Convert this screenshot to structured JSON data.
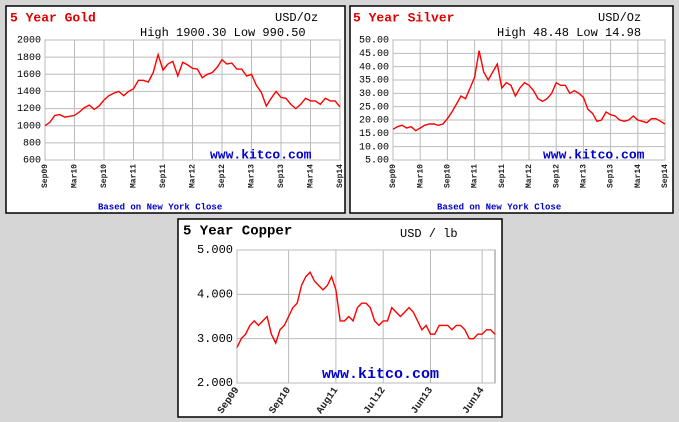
{
  "chart_data": [
    {
      "type": "line",
      "title": "5 Year Gold",
      "unit": "USD/Oz",
      "subtitle": "High 1900.30 Low 990.50",
      "watermark": "www.kitco.com",
      "footnote": "Based on New York Close",
      "categories": [
        "Sep09",
        null,
        null,
        null,
        null,
        null,
        "Mar10",
        null,
        null,
        null,
        null,
        null,
        "Sep10",
        null,
        null,
        null,
        null,
        null,
        "Mar11",
        null,
        null,
        null,
        null,
        null,
        "Sep11",
        null,
        null,
        null,
        null,
        null,
        "Mar12",
        null,
        null,
        null,
        null,
        null,
        "Sep12",
        null,
        null,
        null,
        null,
        null,
        "Mar13",
        null,
        null,
        null,
        null,
        null,
        "Sep13",
        null,
        null,
        null,
        null,
        null,
        "Mar14",
        null,
        null,
        null,
        null,
        null,
        "Sep14"
      ],
      "values": [
        1000,
        1040,
        1120,
        1130,
        1100,
        1110,
        1120,
        1160,
        1210,
        1240,
        1190,
        1230,
        1300,
        1350,
        1380,
        1400,
        1350,
        1400,
        1430,
        1530,
        1530,
        1510,
        1620,
        1830,
        1650,
        1720,
        1750,
        1580,
        1740,
        1710,
        1670,
        1660,
        1560,
        1600,
        1620,
        1680,
        1770,
        1720,
        1730,
        1660,
        1660,
        1580,
        1600,
        1470,
        1390,
        1230,
        1320,
        1400,
        1330,
        1320,
        1250,
        1200,
        1250,
        1320,
        1290,
        1290,
        1250,
        1320,
        1290,
        1290,
        1220
      ],
      "color": "#ff0000",
      "ylim": [
        600,
        2000
      ],
      "yticks": [
        600,
        800,
        1000,
        1200,
        1400,
        1600,
        1800,
        2000
      ],
      "grid": true
    },
    {
      "type": "line",
      "title": "5 Year Silver",
      "unit": "USD/Oz",
      "subtitle": "High 48.48 Low 14.98",
      "watermark": "www.kitco.com",
      "footnote": "Based on New York Close",
      "categories": [
        "Sep09",
        null,
        null,
        null,
        null,
        null,
        "Mar10",
        null,
        null,
        null,
        null,
        null,
        "Sep10",
        null,
        null,
        null,
        null,
        null,
        "Mar11",
        null,
        null,
        null,
        null,
        null,
        "Sep11",
        null,
        null,
        null,
        null,
        null,
        "Mar12",
        null,
        null,
        null,
        null,
        null,
        "Sep12",
        null,
        null,
        null,
        null,
        null,
        "Mar13",
        null,
        null,
        null,
        null,
        null,
        "Sep13",
        null,
        null,
        null,
        null,
        null,
        "Mar14",
        null,
        null,
        null,
        null,
        null,
        "Sep14"
      ],
      "values": [
        16.5,
        17.5,
        18,
        17,
        17.5,
        16,
        17,
        18,
        18.5,
        18.5,
        18,
        18.5,
        20.5,
        23,
        26,
        29,
        28,
        32,
        36,
        46,
        38,
        35,
        38,
        41,
        32,
        34,
        33,
        29,
        32,
        34,
        33,
        31,
        28,
        27,
        28,
        30,
        34,
        33,
        33,
        30,
        31,
        30,
        28.5,
        24,
        22.5,
        19.5,
        20,
        23,
        22,
        21.5,
        20,
        19.5,
        20,
        21.5,
        20,
        19.5,
        19,
        20.5,
        20.5,
        19.5,
        18.5
      ],
      "color": "#ff0000",
      "ylim": [
        5,
        50
      ],
      "yticks": [
        {
          "value": 5,
          "label": "5.00"
        },
        {
          "value": 10,
          "label": "10.00"
        },
        {
          "value": 15,
          "label": "15.00"
        },
        {
          "value": 20,
          "label": "20.00"
        },
        {
          "value": 25,
          "label": "25.00"
        },
        {
          "value": 30,
          "label": "30.00"
        },
        {
          "value": 35,
          "label": "35.00"
        },
        {
          "value": 40,
          "label": "40.00"
        },
        {
          "value": 45,
          "label": "45.00"
        },
        {
          "value": 50,
          "label": "50.00"
        }
      ],
      "grid": true
    },
    {
      "type": "line",
      "title": "5 Year Copper",
      "unit": "USD / lb",
      "watermark": "www.kitco.com",
      "categories": [
        "Sep09",
        null,
        null,
        null,
        null,
        null,
        null,
        null,
        null,
        null,
        null,
        null,
        "Sep10",
        null,
        null,
        null,
        null,
        null,
        null,
        null,
        null,
        null,
        null,
        "Aug11",
        null,
        null,
        null,
        null,
        null,
        null,
        null,
        null,
        null,
        null,
        "Jul12",
        null,
        null,
        null,
        null,
        null,
        null,
        null,
        null,
        null,
        null,
        "Jun13",
        null,
        null,
        null,
        null,
        null,
        null,
        null,
        null,
        null,
        null,
        null,
        "Jun14",
        null,
        null,
        null
      ],
      "values": [
        2.8,
        3.0,
        3.1,
        3.3,
        3.4,
        3.3,
        3.4,
        3.5,
        3.1,
        2.9,
        3.2,
        3.3,
        3.5,
        3.7,
        3.8,
        4.2,
        4.4,
        4.5,
        4.3,
        4.2,
        4.1,
        4.2,
        4.4,
        4.1,
        3.4,
        3.4,
        3.5,
        3.4,
        3.7,
        3.8,
        3.8,
        3.7,
        3.4,
        3.3,
        3.4,
        3.4,
        3.7,
        3.6,
        3.5,
        3.6,
        3.7,
        3.6,
        3.4,
        3.2,
        3.3,
        3.1,
        3.1,
        3.3,
        3.3,
        3.3,
        3.2,
        3.3,
        3.3,
        3.2,
        3.0,
        3.0,
        3.1,
        3.1,
        3.2,
        3.2,
        3.1
      ],
      "color": "#ff0000",
      "ylim": [
        2,
        5
      ],
      "yticks": [
        {
          "value": 2,
          "label": "2.000"
        },
        {
          "value": 3,
          "label": "3.000"
        },
        {
          "value": 4,
          "label": "4.000"
        },
        {
          "value": 5,
          "label": "5.000"
        }
      ],
      "grid": true
    }
  ]
}
